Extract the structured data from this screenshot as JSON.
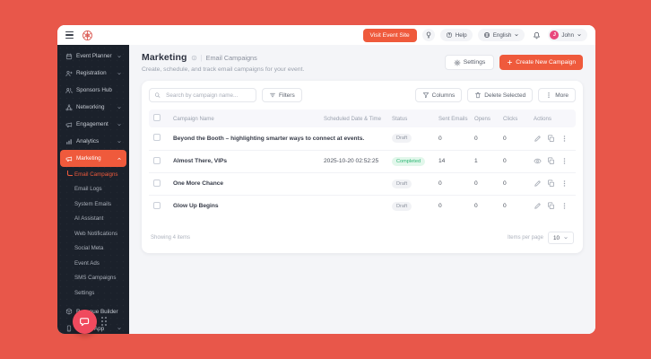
{
  "header": {
    "visit_event_site_label": "Visit Event Site",
    "help_label": "Help",
    "language_label": "English",
    "user_name": "John",
    "user_initial": "J"
  },
  "sidebar": {
    "items": [
      {
        "label": "Event Planner",
        "icon": "calendar",
        "expandable": true
      },
      {
        "label": "Registration",
        "icon": "user-plus",
        "expandable": true
      },
      {
        "label": "Sponsors Hub",
        "icon": "users",
        "expandable": false
      },
      {
        "label": "Networking",
        "icon": "network",
        "expandable": true
      },
      {
        "label": "Engagement",
        "icon": "megaphone",
        "expandable": true
      },
      {
        "label": "Analytics",
        "icon": "chart",
        "expandable": true
      },
      {
        "label": "Marketing",
        "icon": "megaphone",
        "expandable": true,
        "expanded": true,
        "active": true
      }
    ],
    "marketing_submenu": [
      {
        "label": "Email Campaigns",
        "active": true
      },
      {
        "label": "Email Logs"
      },
      {
        "label": "System Emails"
      },
      {
        "label": "AI Assistant"
      },
      {
        "label": "Web Notifications"
      },
      {
        "label": "Social Meta"
      },
      {
        "label": "Event Ads"
      },
      {
        "label": "SMS Campaigns"
      },
      {
        "label": "Settings"
      }
    ],
    "bottom_items": [
      {
        "label": "Revenue Builder",
        "icon": "box",
        "expandable": true
      },
      {
        "label": "Mobile App",
        "icon": "mobile",
        "expandable": true
      }
    ]
  },
  "page": {
    "title": "Marketing",
    "breadcrumb": "Email Campaigns",
    "breadcrumb_divider": "|",
    "subtitle": "Create, schedule, and track email campaigns for your event.",
    "settings_label": "Settings",
    "settings_icon": "gear",
    "create_label": "Create New Campaign",
    "create_icon": "plus"
  },
  "toolbar": {
    "search_placeholder": "Search by campaign name...",
    "search_icon": "search",
    "filters_label": "Filters",
    "filters_icon": "filter-lines",
    "columns_label": "Columns",
    "columns_icon": "funnel",
    "delete_label": "Delete Selected",
    "delete_icon": "trash",
    "more_label": "More",
    "more_icon": "dots-v"
  },
  "table": {
    "columns": [
      "Campaign Name",
      "Scheduled Date & Time",
      "Status",
      "Sent Emails",
      "Opens",
      "Clicks",
      "Actions"
    ],
    "rows": [
      {
        "name": "Beyond the Booth – highlighting smarter ways to connect at events.",
        "scheduled": "",
        "status": "Draft",
        "sent": "0",
        "opens": "0",
        "clicks": "0",
        "actions": [
          "edit",
          "duplicate",
          "more"
        ]
      },
      {
        "name": "Almost There, VIPs",
        "scheduled": "2025-10-20 02:52:25",
        "status": "Completed",
        "sent": "14",
        "opens": "1",
        "clicks": "0",
        "actions": [
          "view",
          "duplicate",
          "more"
        ]
      },
      {
        "name": "One More Chance",
        "scheduled": "",
        "status": "Draft",
        "sent": "0",
        "opens": "0",
        "clicks": "0",
        "actions": [
          "edit",
          "duplicate",
          "more"
        ]
      },
      {
        "name": "Glow Up Begins",
        "scheduled": "",
        "status": "Draft",
        "sent": "0",
        "opens": "0",
        "clicks": "0",
        "actions": [
          "edit",
          "duplicate",
          "more"
        ]
      }
    ]
  },
  "pagination": {
    "showing": "Showing 4 items",
    "items_per_page_label": "Items per page",
    "items_per_page_value": "10"
  },
  "colors": {
    "accent": "#EF5A3C",
    "frame_background": "#E8574A",
    "sidebar_background": "#1B212B",
    "avatar_background": "#E8467C",
    "chat_button_background": "#F04A5E",
    "status_completed_text": "#2BB673",
    "status_completed_background": "#E2F7EB",
    "status_draft_text": "#8E94A0",
    "status_draft_background": "#F1F2F5"
  }
}
